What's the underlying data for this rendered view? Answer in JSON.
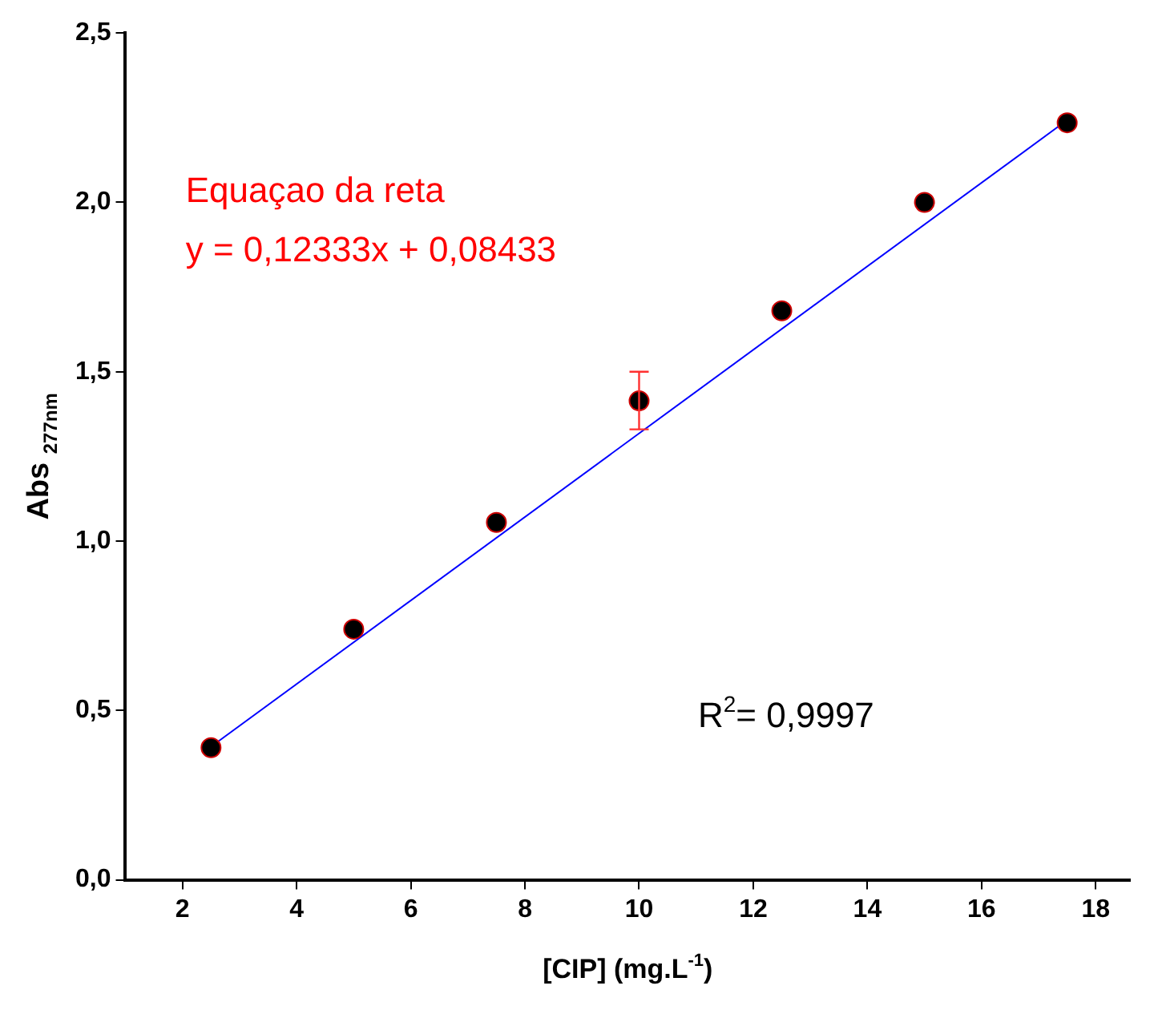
{
  "chart_data": {
    "type": "scatter",
    "xlabel": "[CIP] (mg.L$^{-1}$)",
    "ylabel": "Abs $_{277nm}$",
    "annotations": [
      "Equaçao da reta",
      "y = 0,12333x + 0,08433",
      "R$^{2}$= 0,9997"
    ],
    "x": [
      2.5,
      5,
      7.5,
      10,
      12.5,
      15,
      17.5
    ],
    "series": [
      {
        "color": "#000000",
        "marker": "circle",
        "values": [
          0.39,
          0.74,
          1.055,
          1.414,
          1.68,
          2.0,
          2.235
        ],
        "errors": [
          null,
          null,
          null,
          [
            1.33,
            1.5
          ],
          null,
          null,
          null
        ]
      },
      {
        "type": "line",
        "color": "#0000ff",
        "x": [
          2.5,
          17.5
        ],
        "values": [
          0.393,
          2.243
        ]
      }
    ],
    "xlim": [
      1,
      18.6
    ],
    "xticks": [
      2,
      4,
      6,
      8,
      10,
      12,
      14,
      16,
      18
    ],
    "ylim": [
      0,
      2.5
    ],
    "yticks": [
      {
        "value": 0,
        "label": "0,0"
      },
      {
        "value": 0.5,
        "label": "0,5"
      },
      {
        "value": 1,
        "label": "1,0"
      },
      {
        "value": 1.5,
        "label": "1,5"
      },
      {
        "value": 2,
        "label": "2,0"
      },
      {
        "value": 2.5,
        "label": "2,5"
      }
    ],
    "grid": false,
    "legend": false
  }
}
